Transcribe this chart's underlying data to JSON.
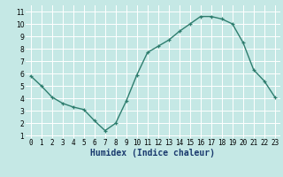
{
  "x": [
    0,
    1,
    2,
    3,
    4,
    5,
    6,
    7,
    8,
    9,
    10,
    11,
    12,
    13,
    14,
    15,
    16,
    17,
    18,
    19,
    20,
    21,
    22,
    23
  ],
  "y": [
    5.8,
    5.0,
    4.1,
    3.6,
    3.3,
    3.1,
    2.2,
    1.4,
    2.0,
    3.8,
    5.9,
    7.7,
    8.2,
    8.7,
    9.4,
    10.0,
    10.6,
    10.6,
    10.4,
    10.0,
    8.5,
    6.3,
    5.4,
    4.1
  ],
  "line_color": "#2e7d6e",
  "marker_color": "#2e7d6e",
  "bg_color": "#c5e8e5",
  "grid_major_color": "#ffffff",
  "grid_minor_color": "#daf0ee",
  "xlabel": "Humidex (Indice chaleur)",
  "xlabel_color": "#1a3a6e",
  "xlim": [
    -0.5,
    23.5
  ],
  "ylim": [
    0.8,
    11.5
  ],
  "xticks": [
    0,
    1,
    2,
    3,
    4,
    5,
    6,
    7,
    8,
    9,
    10,
    11,
    12,
    13,
    14,
    15,
    16,
    17,
    18,
    19,
    20,
    21,
    22,
    23
  ],
  "yticks": [
    1,
    2,
    3,
    4,
    5,
    6,
    7,
    8,
    9,
    10,
    11
  ],
  "tick_fontsize": 5.5,
  "xlabel_fontsize": 7,
  "marker_size": 2.5,
  "line_width": 1.0
}
